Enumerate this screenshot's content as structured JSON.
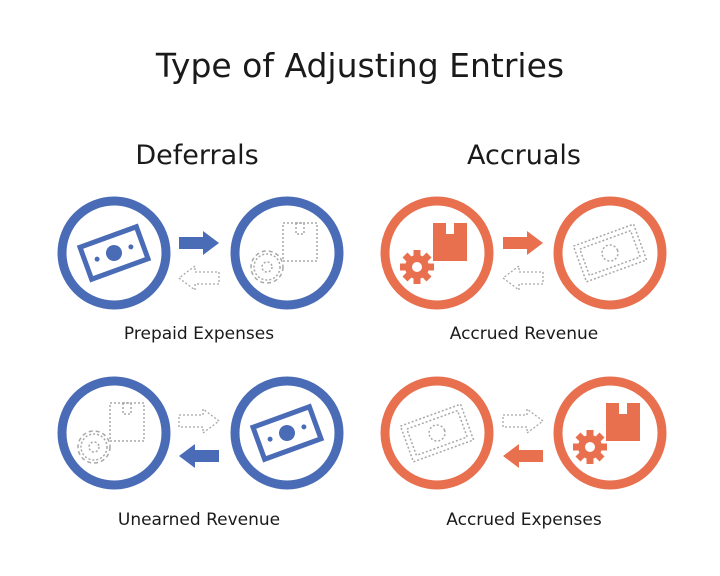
{
  "title": "Type of Adjusting Entries",
  "colors": {
    "deferrals": "#4a6bb5",
    "accruals": "#e8704f",
    "inactive": "#a8a8a8"
  },
  "sections": [
    {
      "heading": "Deferrals",
      "items": [
        {
          "label": "Prepaid Expenses",
          "from_icon": "money-icon",
          "to_icon": "gear-box-icon-dotted"
        },
        {
          "label": "Unearned Revenue",
          "from_icon": "gear-box-icon-dotted",
          "to_icon": "money-icon"
        }
      ]
    },
    {
      "heading": "Accruals",
      "items": [
        {
          "label": "Accrued Revenue",
          "from_icon": "gear-box-icon",
          "to_icon": "money-icon-dotted"
        },
        {
          "label": "Accrued Expenses",
          "from_icon": "money-icon-dotted",
          "to_icon": "gear-box-icon"
        }
      ]
    }
  ]
}
